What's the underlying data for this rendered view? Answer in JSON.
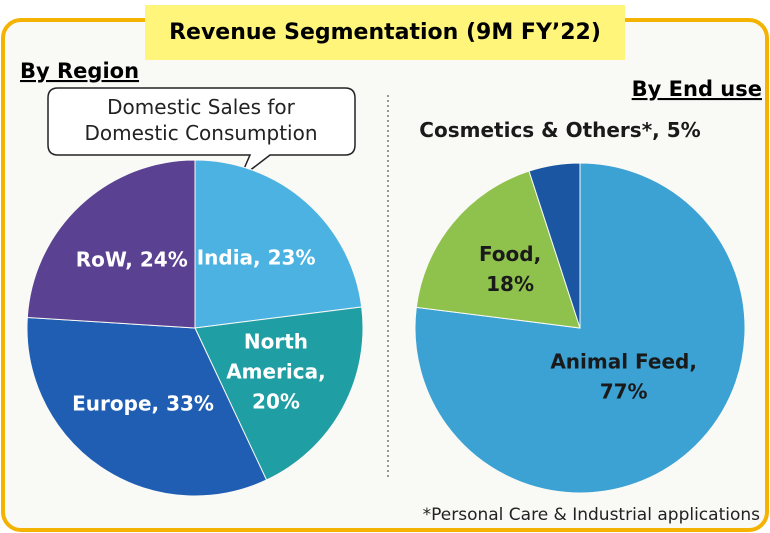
{
  "title": "Revenue Segmentation (9M FY’22)",
  "callout": "Domestic Sales for\nDomestic Consumption",
  "footnote": "*Personal Care & Industrial applications",
  "chart_data": [
    {
      "type": "pie",
      "title": "By Region",
      "values": [
        23,
        20,
        33,
        24
      ],
      "value_labels": [
        "India, 23%",
        "North\nAmerica,\n20%",
        "Europe, 33%",
        "RoW, 24%"
      ],
      "colors": [
        "#4cb2e2",
        "#1f9ea3",
        "#1f5eb3",
        "#5b4191"
      ],
      "label_color": "#ffffff"
    },
    {
      "type": "pie",
      "title": "By End use",
      "values": [
        77,
        18,
        5
      ],
      "value_labels": [
        "Animal Feed,\n77%",
        "Food,\n18%",
        "Cosmetics & Others*, 5%"
      ],
      "colors": [
        "#3ba2d3",
        "#8fc24c",
        "#1b56a3"
      ],
      "label_color": "#1a1a1a"
    }
  ]
}
